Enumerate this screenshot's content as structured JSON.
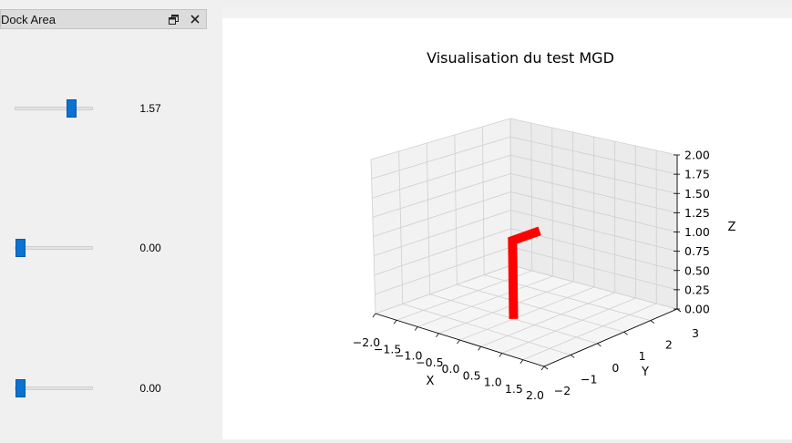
{
  "dock": {
    "title": "Dock Area",
    "float_icon": "float-icon",
    "close_icon": "close-icon",
    "sliders": [
      {
        "value_label": "1.57",
        "position": 0.75
      },
      {
        "value_label": "0.00",
        "position": 0.0
      },
      {
        "value_label": "0.00",
        "position": 0.0
      }
    ]
  },
  "chart_data": {
    "type": "line3d",
    "title": "Visualisation du test MGD",
    "xlabel": "X",
    "ylabel": "Y",
    "zlabel": "Z",
    "xlim": [
      -2.0,
      2.0
    ],
    "ylim": [
      -2,
      3
    ],
    "zlim": [
      0.0,
      2.0
    ],
    "x_ticks": [
      "−2.0",
      "−1.5",
      "−1.0",
      "−0.5",
      "0.0",
      "0.5",
      "1.0",
      "1.5",
      "2.0"
    ],
    "y_ticks": [
      "−2",
      "−1",
      "0",
      "1",
      "2",
      "3"
    ],
    "z_ticks": [
      "0.00",
      "0.25",
      "0.50",
      "0.75",
      "1.00",
      "1.25",
      "1.50",
      "1.75",
      "2.00"
    ],
    "series": [
      {
        "color": "#ff0000",
        "points": [
          [
            0,
            0,
            0
          ],
          [
            0,
            0,
            1
          ],
          [
            0,
            1,
            1
          ]
        ]
      }
    ]
  }
}
